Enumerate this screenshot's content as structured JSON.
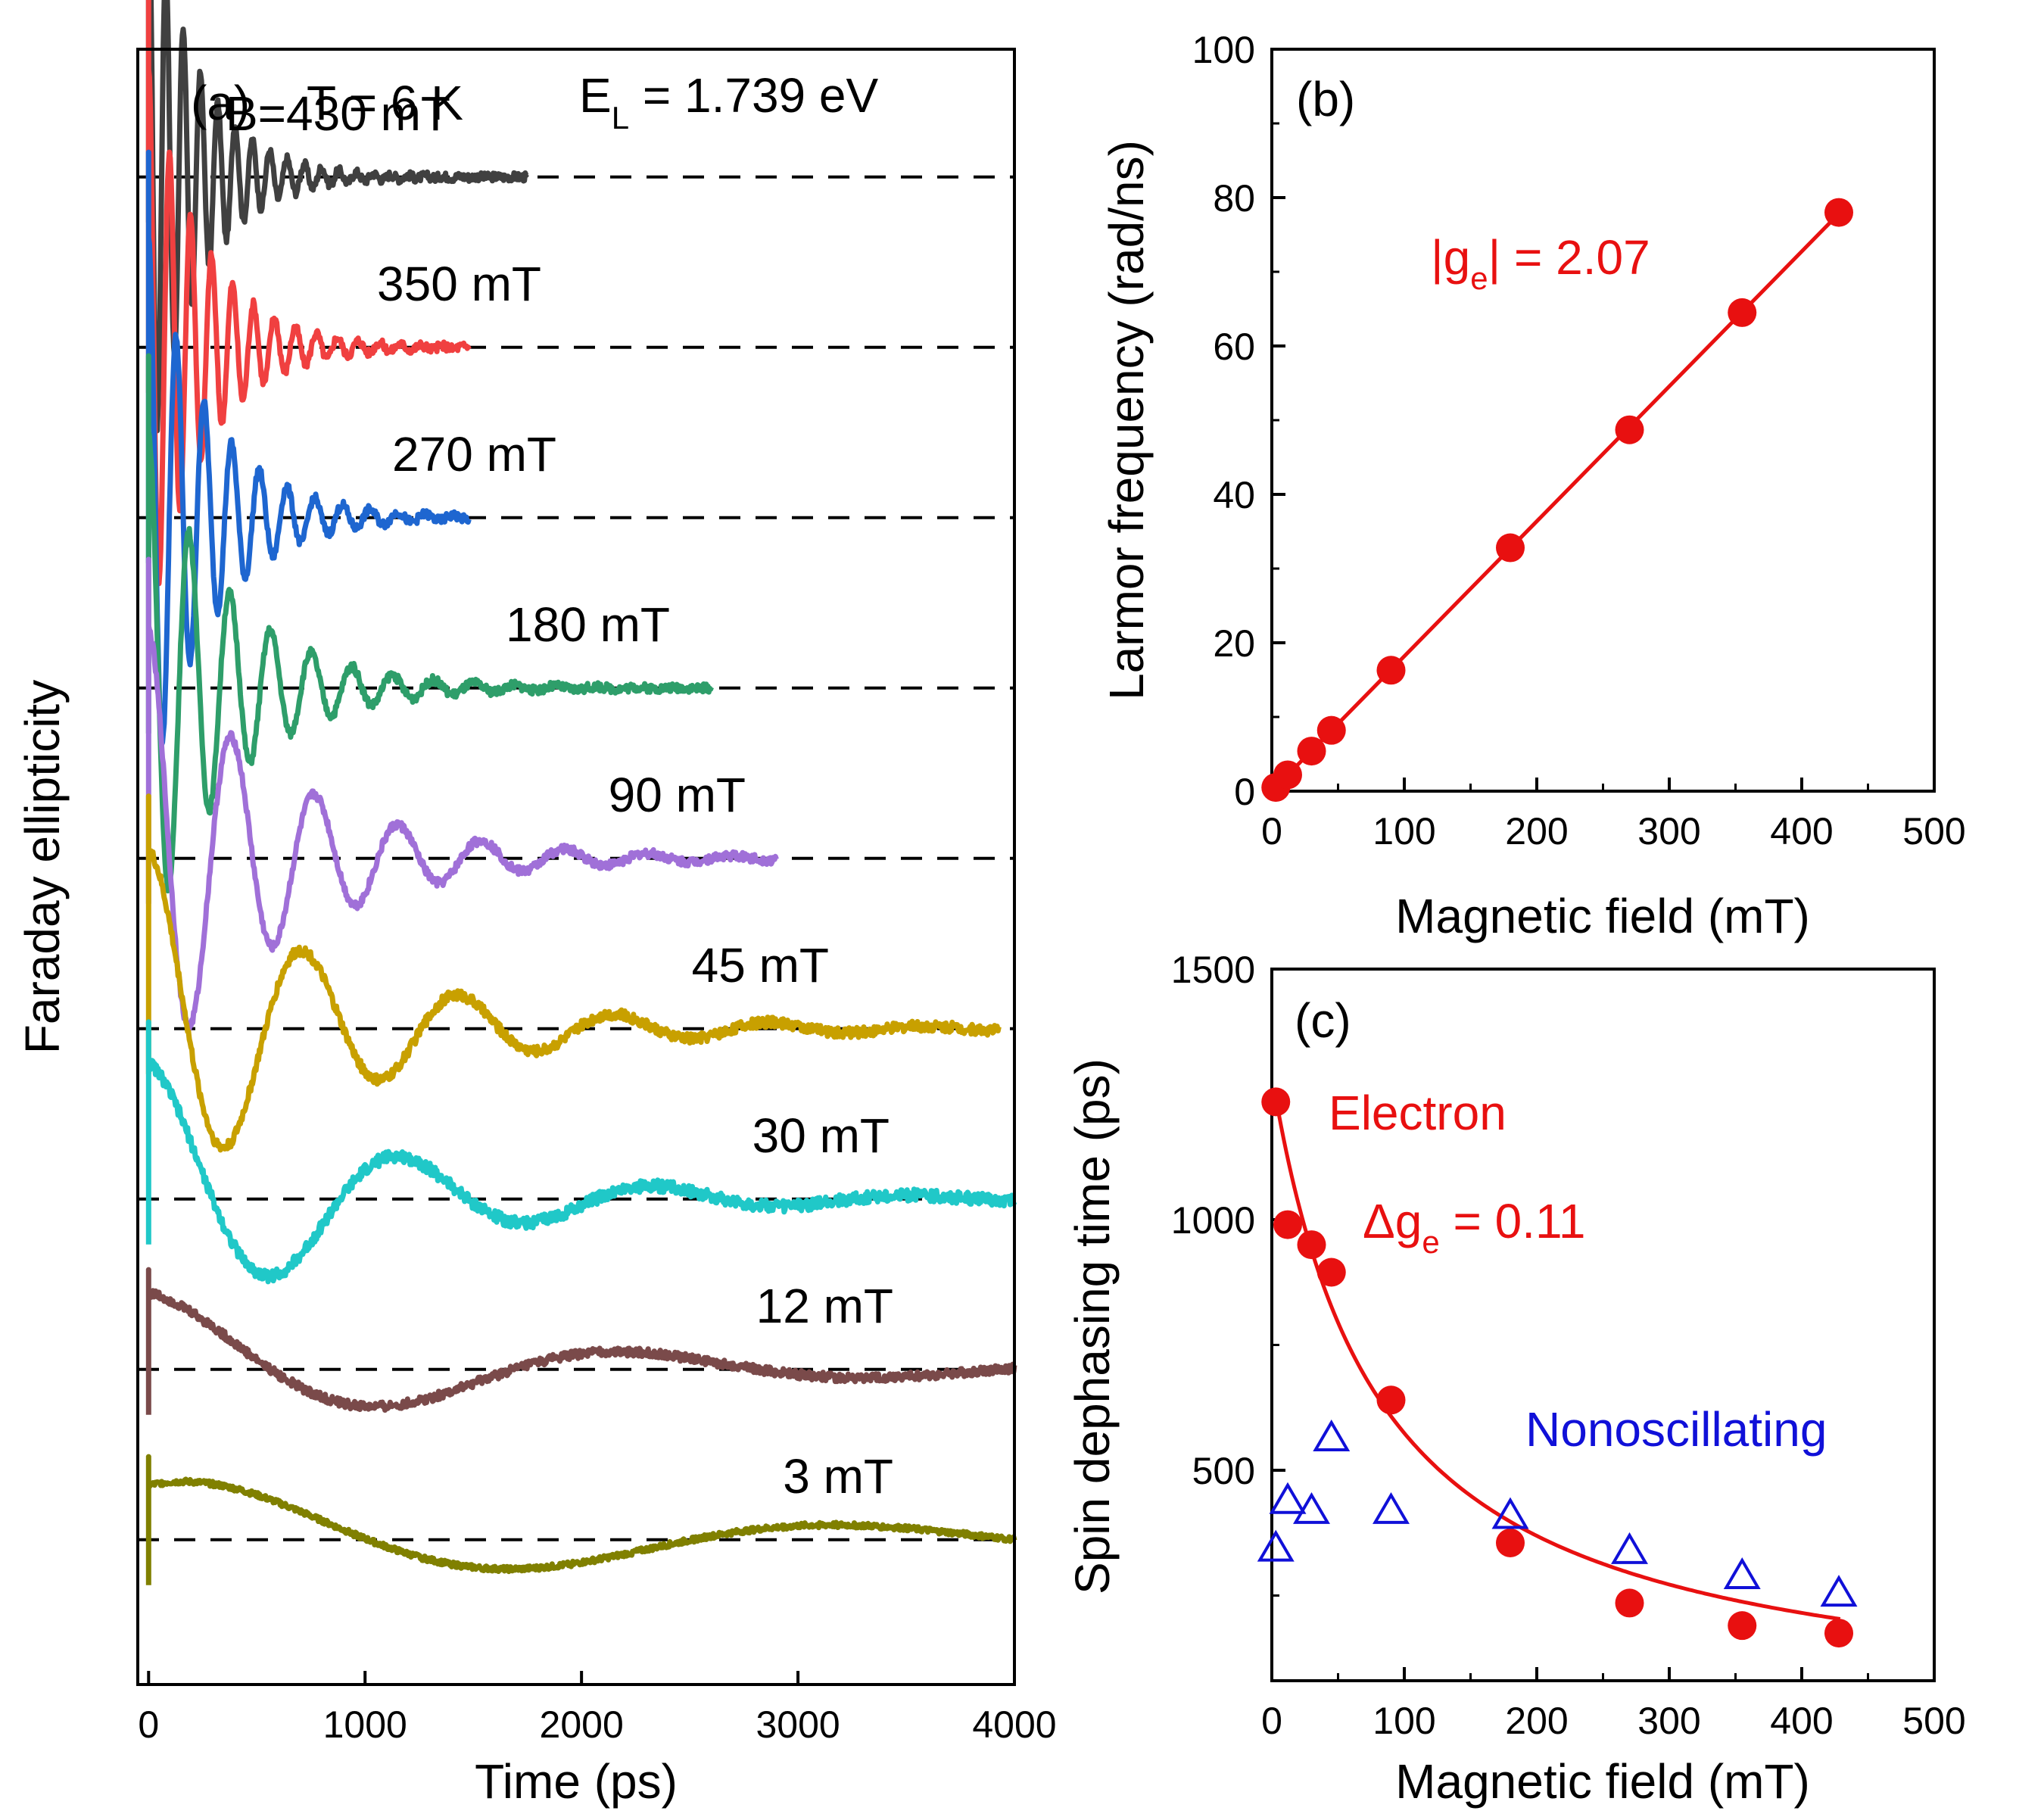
{
  "chart_data": [
    {
      "panel": "a",
      "type": "line",
      "panel_label": "(a)",
      "header": {
        "temperature": "T = 6 K",
        "energy_prefix": "E",
        "energy_sub": "L",
        "energy_value": " = 1.739 eV"
      },
      "xlabel": "Time (ps)",
      "ylabel": "Faraday ellipticity",
      "xlim": [
        -50,
        4000
      ],
      "xticks": [
        0,
        1000,
        2000,
        3000,
        4000
      ],
      "yticks": [],
      "series": [
        {
          "name": "B=430 mT",
          "label": "B=430 mT",
          "color": "#404040",
          "offset": 10,
          "t_end": 1750,
          "period_ps": 80,
          "amp": 3.5,
          "tau_ps": 230,
          "noise": 0.05,
          "phase": 0
        },
        {
          "name": "350 mT",
          "label": "350 mT",
          "color": "#f04040",
          "offset": 8,
          "t_end": 1480,
          "period_ps": 97,
          "amp": 3.3,
          "tau_ps": 260,
          "noise": 0.05,
          "phase": 0
        },
        {
          "name": "270 mT",
          "label": "270 mT",
          "color": "#1e66d0",
          "offset": 6,
          "t_end": 1480,
          "period_ps": 128,
          "amp": 3.3,
          "tau_ps": 290,
          "noise": 0.05,
          "phase": 0
        },
        {
          "name": "180 mT",
          "label": "180 mT",
          "color": "#2e9e6a",
          "offset": 4,
          "t_end": 2600,
          "period_ps": 188,
          "amp": 3.0,
          "tau_ps": 380,
          "noise": 0.05,
          "phase": 0
        },
        {
          "name": "90 mT",
          "label": "90 mT",
          "color": "#a070d8",
          "offset": 2,
          "t_end": 2900,
          "period_ps": 385,
          "amp": 2.7,
          "tau_ps": 600,
          "noise": 0.05,
          "phase": 0
        },
        {
          "name": "45 mT",
          "label": "45 mT",
          "color": "#c8a000",
          "offset": 0,
          "t_end": 3930,
          "period_ps": 720,
          "amp": 2.1,
          "tau_ps": 860,
          "noise": 0.06,
          "phase": 0
        },
        {
          "name": "30 mT",
          "label": "30 mT",
          "color": "#20c8c8",
          "offset": -2,
          "t_end": 4000,
          "period_ps": 1180,
          "amp": 1.6,
          "tau_ps": 1000,
          "noise": 0.07,
          "phase": 0
        },
        {
          "name": "12 mT",
          "label": "12 mT",
          "color": "#7a4a4a",
          "offset": -4,
          "t_end": 4000,
          "period_ps": 2250,
          "amp": 0.9,
          "tau_ps": 1500,
          "noise": 0.05,
          "phase": 0
        },
        {
          "name": "3 mT",
          "label": "3 mT",
          "color": "#808000",
          "offset": -6,
          "t_end": 4000,
          "period_ps": 3000,
          "amp": 0.75,
          "tau_ps": 2200,
          "noise": 0.03,
          "phase": -0.55
        }
      ]
    },
    {
      "panel": "b",
      "type": "scatter",
      "panel_label": "(b)",
      "xlabel": "Magnetic field (mT)",
      "ylabel": "Larmor frequency (rad/ns)",
      "xlim": [
        0,
        500
      ],
      "ylim": [
        0,
        100
      ],
      "xticks": [
        0,
        100,
        200,
        300,
        400,
        500
      ],
      "yticks": [
        0,
        20,
        40,
        60,
        80,
        100
      ],
      "grid": false,
      "series": [
        {
          "name": "Larmor frequency",
          "color": "#e81010",
          "x": [
            3,
            12,
            30,
            45,
            90,
            180,
            270,
            355,
            428
          ],
          "y": [
            0.5,
            2.2,
            5.4,
            8.2,
            16.3,
            32.8,
            48.7,
            64.5,
            78.0
          ]
        }
      ],
      "fit": {
        "color": "#e81010",
        "x": [
          0,
          430
        ],
        "y": [
          0,
          78.2
        ]
      },
      "annotation": {
        "prefix": "|g",
        "sub": "e",
        "suffix": "| = 2.07",
        "color": "#e81010"
      }
    },
    {
      "panel": "c",
      "type": "scatter",
      "panel_label": "(c)",
      "xlabel": "Magnetic field (mT)",
      "ylabel": "Spin dephasing time (ps)",
      "xlim": [
        0,
        500
      ],
      "ylim": [
        80,
        1500
      ],
      "xticks": [
        0,
        100,
        200,
        300,
        400,
        500
      ],
      "yticks": [
        500,
        1000,
        1500
      ],
      "grid": false,
      "series": [
        {
          "name": "Electron",
          "marker": "circle",
          "color": "#e81010",
          "x": [
            3,
            12,
            30,
            45,
            90,
            180,
            270,
            355,
            428
          ],
          "y": [
            1235,
            990,
            950,
            895,
            640,
            355,
            235,
            190,
            175
          ]
        },
        {
          "name": "Nonoscillating",
          "marker": "triangle",
          "color": "#1010d8",
          "x": [
            3,
            12,
            30,
            45,
            90,
            180,
            270,
            355,
            428
          ],
          "y": [
            345,
            440,
            420,
            565,
            420,
            410,
            340,
            290,
            255
          ]
        }
      ],
      "fit": {
        "color": "#e81010",
        "model": "T2 = 1/(1/1290 + 0.11*muB*B/hbar)",
        "T0_ps": 1290,
        "dg": 0.11,
        "x_range": [
          3,
          430
        ]
      },
      "labels": {
        "electron": "Electron",
        "nonosc": "Nonoscillating",
        "dg_prefix": "Δg",
        "dg_sub": "e",
        "dg_suffix": " = 0.11"
      }
    }
  ]
}
